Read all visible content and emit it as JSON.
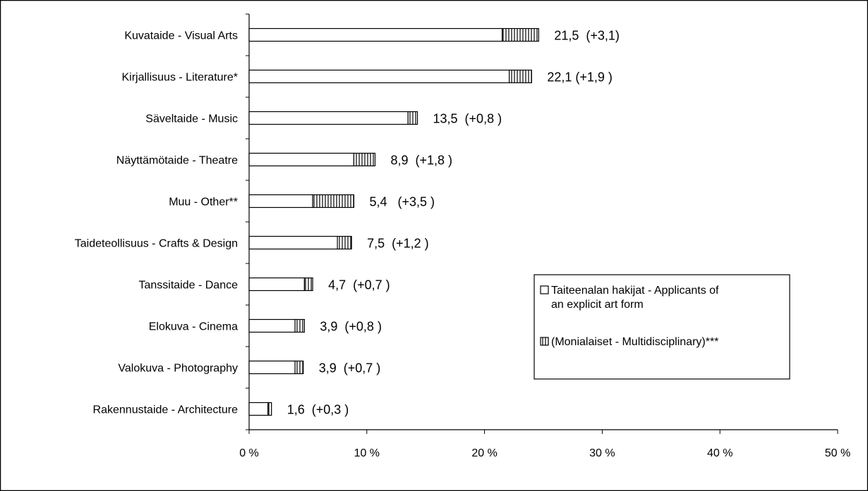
{
  "chart_data": {
    "type": "bar",
    "stacked": true,
    "orientation": "horizontal",
    "categories": [
      "Kuvataide - Visual Arts",
      "Kirjallisuus - Literature*",
      "Säveltaide - Music",
      "Näyttämötaide - Theatre",
      "Muu - Other**",
      "Taideteollisuus - Crafts & Design",
      "Tanssitaide - Dance",
      "Elokuva - Cinema",
      "Valokuva - Photography",
      "Rakennustaide - Architecture"
    ],
    "series": [
      {
        "name": "Taiteenalan hakijat - Applicants of an explicit art form",
        "values": [
          21.5,
          22.1,
          13.5,
          8.9,
          5.4,
          7.5,
          4.7,
          3.9,
          3.9,
          1.6
        ]
      },
      {
        "name": "(Monialaiset - Multidisciplinary)***",
        "values": [
          3.1,
          1.9,
          0.8,
          1.8,
          3.5,
          1.2,
          0.7,
          0.8,
          0.7,
          0.3
        ]
      }
    ],
    "data_labels": [
      "21,5  (+3,1)",
      "22,1 (+1,9 )",
      "13,5  (+0,8 )",
      "8,9  (+1,8 )",
      "5,4   (+3,5 )",
      "7,5  (+1,2 )",
      "4,7  (+0,7 )",
      "3,9  (+0,8 )",
      "3,9  (+0,7 )",
      "1,6  (+0,3 )"
    ],
    "x_ticks": [
      "0 %",
      "10 %",
      "20 %",
      "30 %",
      "40 %",
      "50 %"
    ],
    "xlim": [
      0,
      50
    ],
    "legend": {
      "position": "bottom-right",
      "entries": [
        {
          "lines": [
            "Taiteenalan hakijat - Applicants of",
            "an explicit art form"
          ],
          "pattern": "plain"
        },
        {
          "lines": [
            "(Monialaiset - Multidisciplinary)***"
          ],
          "pattern": "vertical-stripes"
        }
      ]
    },
    "grid": false,
    "colors": {
      "fill": "#ffffff",
      "stroke": "#000000"
    }
  }
}
